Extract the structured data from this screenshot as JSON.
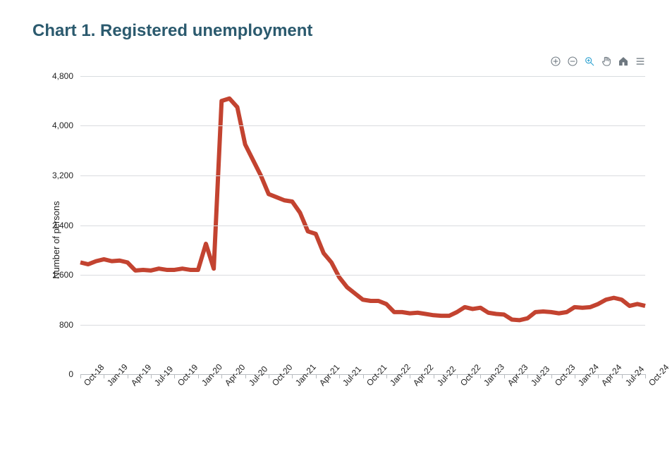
{
  "title": "Chart 1. Registered unemployment",
  "title_color": "#2b5a6e",
  "title_fontsize": 24,
  "y_axis_title": "Number of persons",
  "chart": {
    "type": "line",
    "line_color": "#c34330",
    "line_width": 3,
    "background_color": "#ffffff",
    "grid_color": "#d9dcdf",
    "axis_color": "#b8bcc0",
    "ylim": [
      0,
      4800
    ],
    "ytick_step": 800,
    "yticks": [
      "0",
      "800",
      "1,600",
      "2,400",
      "3,200",
      "4,000",
      "4,800"
    ],
    "label_fontsize": 12,
    "x_labels": [
      "Oct-18",
      "Jan-19",
      "Apr-19",
      "Jul-19",
      "Oct-19",
      "Jan-20",
      "Apr-20",
      "Jul-20",
      "Oct-20",
      "Jan-21",
      "Apr-21",
      "Jul-21",
      "Oct-21",
      "Jan-22",
      "Apr-22",
      "Jul-22",
      "Oct-22",
      "Jan-23",
      "Apr-23",
      "Jul-23",
      "Oct-23",
      "Jan-24",
      "Apr-24",
      "Jul-24",
      "Oct-24"
    ],
    "x_label_rotation": -48,
    "series": {
      "values": [
        1800,
        1770,
        1820,
        1850,
        1820,
        1830,
        1800,
        1670,
        1680,
        1670,
        1700,
        1680,
        1680,
        1700,
        1680,
        1680,
        2100,
        1700,
        4400,
        4440,
        4300,
        3700,
        3450,
        3200,
        2900,
        2850,
        2800,
        2780,
        2600,
        2300,
        2260,
        1950,
        1800,
        1560,
        1400,
        1300,
        1200,
        1180,
        1180,
        1130,
        1000,
        1000,
        980,
        990,
        970,
        950,
        940,
        940,
        1000,
        1080,
        1050,
        1070,
        990,
        970,
        960,
        880,
        870,
        900,
        1000,
        1010,
        1000,
        980,
        1000,
        1080,
        1070,
        1080,
        1130,
        1200,
        1230,
        1200,
        1100,
        1130,
        1100
      ]
    }
  },
  "toolbar": {
    "zoom_in": "zoom-in",
    "zoom_out": "zoom-out",
    "selection_zoom": "selection-zoom",
    "panning": "panning",
    "reset": "reset",
    "menu": "menu"
  }
}
